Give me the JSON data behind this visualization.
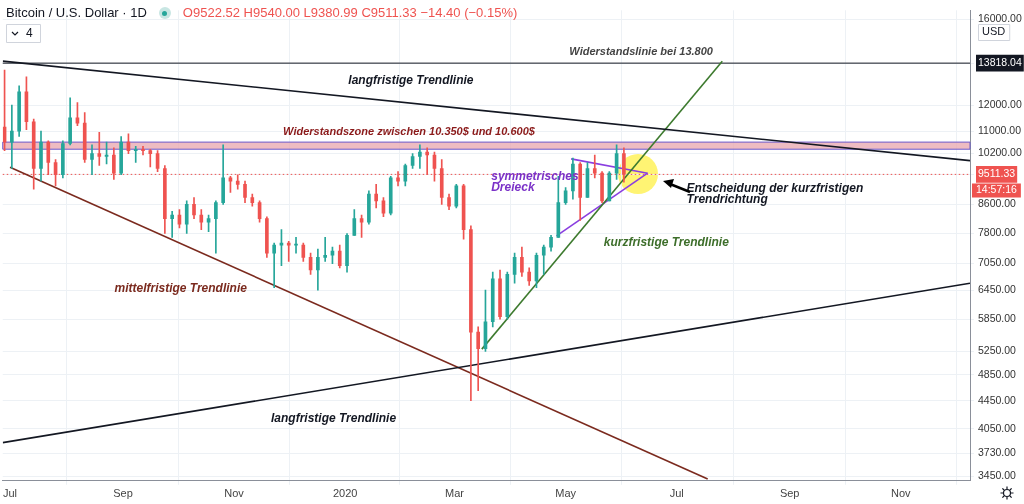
{
  "chart_data": {
    "type": "candlestick",
    "title": "Bitcoin / U.S. Dollar · 1D",
    "subtitle": "O9522.52 H9540.00 L9380.99 C9511.33 −14.40 (−0.15%)",
    "x": [
      "2019-06-28",
      "2019-07-02",
      "2019-07-06",
      "2019-07-10",
      "2019-07-14",
      "2019-07-18",
      "2019-07-22",
      "2019-07-26",
      "2019-07-30",
      "2019-08-03",
      "2019-08-07",
      "2019-08-11",
      "2019-08-15",
      "2019-08-19",
      "2019-08-23",
      "2019-08-27",
      "2019-08-31",
      "2019-09-04",
      "2019-09-08",
      "2019-09-12",
      "2019-09-16",
      "2019-09-20",
      "2019-09-24",
      "2019-09-28",
      "2019-10-02",
      "2019-10-06",
      "2019-10-10",
      "2019-10-14",
      "2019-10-18",
      "2019-10-22",
      "2019-10-26",
      "2019-10-30",
      "2019-11-03",
      "2019-11-07",
      "2019-11-11",
      "2019-11-15",
      "2019-11-19",
      "2019-11-23",
      "2019-11-27",
      "2019-12-01",
      "2019-12-05",
      "2019-12-09",
      "2019-12-13",
      "2019-12-17",
      "2019-12-21",
      "2019-12-25",
      "2019-12-29",
      "2020-01-02",
      "2020-01-06",
      "2020-01-10",
      "2020-01-14",
      "2020-01-18",
      "2020-01-22",
      "2020-01-26",
      "2020-01-30",
      "2020-02-03",
      "2020-02-07",
      "2020-02-11",
      "2020-02-15",
      "2020-02-19",
      "2020-02-23",
      "2020-02-27",
      "2020-03-02",
      "2020-03-06",
      "2020-03-10",
      "2020-03-14",
      "2020-03-18",
      "2020-03-22",
      "2020-03-26",
      "2020-03-30",
      "2020-04-03",
      "2020-04-07",
      "2020-04-11",
      "2020-04-15",
      "2020-04-19",
      "2020-04-23",
      "2020-04-27",
      "2020-05-01",
      "2020-05-05",
      "2020-05-09",
      "2020-05-13",
      "2020-05-17",
      "2020-05-21",
      "2020-05-25",
      "2020-05-29",
      "2020-06-02"
    ],
    "ohlc": [
      [
        11150,
        13500,
        10300,
        10600
      ],
      [
        10600,
        12000,
        9700,
        11000
      ],
      [
        11000,
        12800,
        10800,
        12550
      ],
      [
        12550,
        13200,
        11050,
        11350
      ],
      [
        11350,
        11450,
        9050,
        9700
      ],
      [
        9700,
        11000,
        9300,
        10600
      ],
      [
        10600,
        10650,
        9500,
        9900
      ],
      [
        9900,
        10000,
        9150,
        9500
      ],
      [
        9500,
        10650,
        9400,
        10550
      ],
      [
        10550,
        12300,
        10500,
        11500
      ],
      [
        11500,
        12100,
        11200,
        11300
      ],
      [
        11300,
        11700,
        9900,
        10000
      ],
      [
        10000,
        10500,
        9500,
        10200
      ],
      [
        10200,
        10950,
        9800,
        10100
      ],
      [
        10100,
        10600,
        9850,
        10150
      ],
      [
        10150,
        10400,
        9350,
        9550
      ],
      [
        9550,
        10800,
        9500,
        10600
      ],
      [
        10600,
        10900,
        10200,
        10300
      ],
      [
        10300,
        10450,
        9900,
        10350
      ],
      [
        10350,
        10450,
        10150,
        10300
      ],
      [
        10300,
        10350,
        9750,
        10200
      ],
      [
        10200,
        10300,
        9600,
        9700
      ],
      [
        9700,
        9800,
        7800,
        8200
      ],
      [
        8200,
        8400,
        7700,
        8300
      ],
      [
        8300,
        8450,
        7950,
        8050
      ],
      [
        8050,
        8700,
        7800,
        8600
      ],
      [
        8600,
        8800,
        8200,
        8300
      ],
      [
        8300,
        8450,
        7900,
        8100
      ],
      [
        8100,
        8300,
        7850,
        8200
      ],
      [
        8200,
        8700,
        7300,
        8650
      ],
      [
        8650,
        10500,
        8600,
        9400
      ],
      [
        9400,
        9450,
        8950,
        9300
      ],
      [
        9300,
        9500,
        9050,
        9200
      ],
      [
        9200,
        9300,
        8650,
        8800
      ],
      [
        8800,
        8900,
        8550,
        8650
      ],
      [
        8650,
        8700,
        8100,
        8200
      ],
      [
        8200,
        8250,
        7200,
        7300
      ],
      [
        7300,
        7550,
        6500,
        7500
      ],
      [
        7500,
        7900,
        7000,
        7550
      ],
      [
        7550,
        7600,
        7100,
        7500
      ],
      [
        7500,
        7700,
        7300,
        7500
      ],
      [
        7500,
        7550,
        7100,
        7200
      ],
      [
        7200,
        7300,
        6800,
        6900
      ],
      [
        6900,
        7400,
        6450,
        7200
      ],
      [
        7200,
        7700,
        7100,
        7250
      ],
      [
        7250,
        7450,
        7050,
        7350
      ],
      [
        7350,
        7500,
        6950,
        7000
      ],
      [
        7000,
        7800,
        6850,
        7750
      ],
      [
        7750,
        8450,
        7750,
        8200
      ],
      [
        8200,
        8300,
        7700,
        8100
      ],
      [
        8100,
        9000,
        8050,
        8900
      ],
      [
        8900,
        9200,
        8500,
        8700
      ],
      [
        8700,
        8800,
        8250,
        8350
      ],
      [
        8350,
        9450,
        8300,
        9400
      ],
      [
        9400,
        9600,
        9150,
        9300
      ],
      [
        9300,
        9850,
        9150,
        9800
      ],
      [
        9800,
        10200,
        9700,
        10100
      ],
      [
        10100,
        10500,
        9700,
        10250
      ],
      [
        10250,
        10400,
        9500,
        10150
      ],
      [
        10150,
        10250,
        9300,
        9700
      ],
      [
        9700,
        10000,
        8600,
        8800
      ],
      [
        8800,
        8900,
        8450,
        8550
      ],
      [
        8550,
        9200,
        8500,
        9150
      ],
      [
        9150,
        9200,
        7650,
        7900
      ],
      [
        7900,
        8000,
        4450,
        5600
      ],
      [
        5600,
        5700,
        4600,
        5300
      ],
      [
        5300,
        6450,
        5250,
        5800
      ],
      [
        5800,
        6850,
        5700,
        6700
      ],
      [
        6700,
        6900,
        5850,
        5900
      ],
      [
        5900,
        6850,
        5850,
        6800
      ],
      [
        6800,
        7300,
        6600,
        7200
      ],
      [
        7200,
        7450,
        6750,
        6850
      ],
      [
        6850,
        6950,
        6550,
        6650
      ],
      [
        6650,
        7300,
        6500,
        7250
      ],
      [
        7250,
        7500,
        6800,
        7450
      ],
      [
        7450,
        7750,
        7350,
        7700
      ],
      [
        7700,
        9450,
        7700,
        8650
      ],
      [
        8650,
        9100,
        8600,
        9000
      ],
      [
        9000,
        10050,
        8750,
        9850
      ],
      [
        9850,
        9900,
        8150,
        8800
      ],
      [
        8800,
        9900,
        8800,
        9700
      ],
      [
        9700,
        10150,
        9400,
        9550
      ],
      [
        9550,
        9600,
        8650,
        8700
      ],
      [
        8700,
        9600,
        8700,
        9550
      ],
      [
        9550,
        10500,
        9350,
        10200
      ],
      [
        10200,
        10400,
        9266,
        9511.33
      ]
    ],
    "series": [
      {
        "type": "line",
        "color": "#131722",
        "x": [
          "2019-06-27",
          "2020-12-09"
        ],
        "values": [
          13910,
          9960
        ]
      },
      {
        "type": "line",
        "color": "#131722",
        "x": [
          "2019-06-27",
          "2020-12-09"
        ],
        "values": [
          3865,
          6600
        ]
      },
      {
        "type": "line",
        "color": "#7b2a1e",
        "x": [
          "2019-07-01",
          "2020-07-18"
        ],
        "values": [
          9740,
          3420
        ]
      },
      {
        "type": "line",
        "color": "#3d7a2e",
        "x": [
          "2020-03-16",
          "2020-07-26"
        ],
        "values": [
          5290,
          13910
        ]
      },
      {
        "type": "line",
        "color": "#8a3ee0",
        "x": [
          "2020-05-04",
          "2020-06-15"
        ],
        "values": [
          10020,
          9550
        ]
      },
      {
        "type": "line",
        "color": "#8a3ee0",
        "x": [
          "2020-04-26",
          "2020-06-15"
        ],
        "values": [
          7735,
          9550
        ]
      }
    ],
    "xlim": [
      "2019-06-27",
      "2020-12-09"
    ],
    "xticks": [
      {
        "value": "2019-07-01",
        "label": "Jul"
      },
      {
        "value": "2019-09-01",
        "label": "Sep"
      },
      {
        "value": "2019-11-01",
        "label": "Nov"
      },
      {
        "value": "2020-01-01",
        "label": "2020"
      },
      {
        "value": "2020-03-01",
        "label": "Mar"
      },
      {
        "value": "2020-05-01",
        "label": "May"
      },
      {
        "value": "2020-07-01",
        "label": "Jul"
      },
      {
        "value": "2020-09-01",
        "label": "Sep"
      },
      {
        "value": "2020-11-01",
        "label": "Nov"
      }
    ],
    "ylim": [
      3400,
      16500
    ],
    "yticks": [
      {
        "value": 3450,
        "label": "3450.00"
      },
      {
        "value": 3730,
        "label": "3730.00"
      },
      {
        "value": 4050,
        "label": "4050.00"
      },
      {
        "value": 4450,
        "label": "4450.00"
      },
      {
        "value": 4850,
        "label": "4850.00"
      },
      {
        "value": 5250,
        "label": "5250.00"
      },
      {
        "value": 5850,
        "label": "5850.00"
      },
      {
        "value": 6450,
        "label": "6450.00"
      },
      {
        "value": 7050,
        "label": "7050.00"
      },
      {
        "value": 7800,
        "label": "7800.00"
      },
      {
        "value": 8600,
        "label": "8600.00"
      },
      {
        "value": 9511.33,
        "label": "9511.33"
      },
      {
        "value": 10200,
        "label": "10200.00"
      },
      {
        "value": 11000,
        "label": "11000.00"
      },
      {
        "value": 12000,
        "label": "12000.00"
      },
      {
        "value": 13818.04,
        "label": "13818.04"
      },
      {
        "value": 16000,
        "label": "16000.00"
      }
    ],
    "log": true,
    "grid": true,
    "legend": false,
    "marker": "none",
    "ref_lines": [
      {
        "axis": "y",
        "value": 13818.04,
        "label": "Widerstandslinie bei 13.800",
        "color": "#131722",
        "line_style": "solid"
      },
      {
        "axis": "y",
        "value": 9511.33,
        "color": "#ef5350",
        "line_style": "dotted"
      }
    ],
    "bands": [
      {
        "axis": "y",
        "from": 10350,
        "to": 10600,
        "label": "Widerstandszone zwischen 10.350$ und 10.600$",
        "color": "#e8a6ae"
      }
    ],
    "annotations": [
      "4",
      "14:57:16",
      "USD",
      "langfristige Trendlinie",
      "symmetrisches\nDreieck",
      "Entscheidung der kurzfristigen\nTrendrichtung",
      "kurzfristige Trendlinie",
      "mittelfristige Trendlinie",
      "langfristige Trendlinie"
    ]
  }
}
